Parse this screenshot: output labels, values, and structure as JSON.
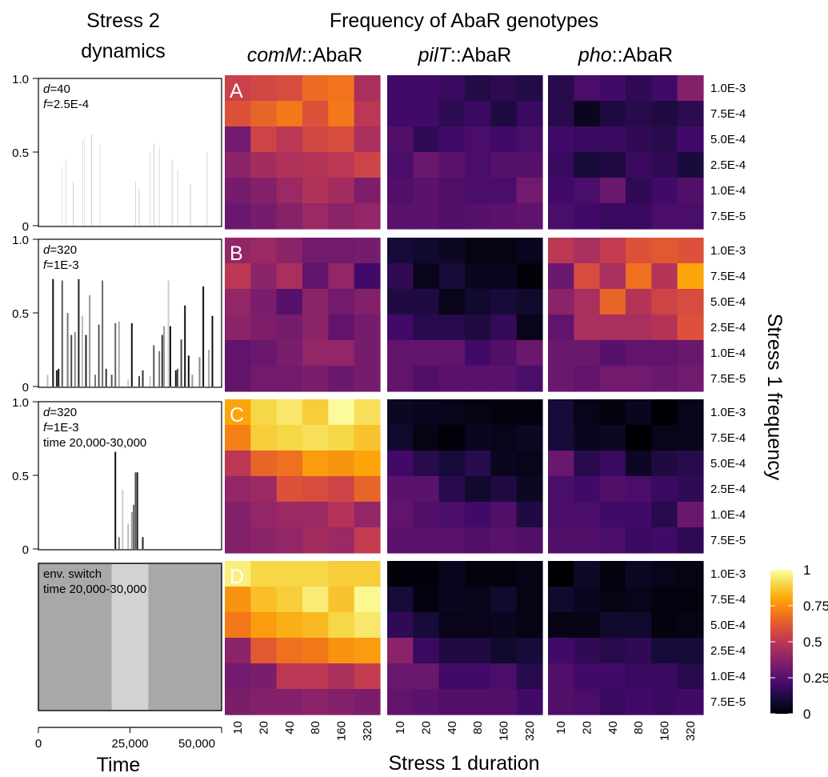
{
  "header": {
    "left_title_line1": "Stress 2",
    "left_title_line2": "dynamics",
    "main_title": "Frequency of AbaR genotypes",
    "col_prefixes": [
      "comM",
      "pilT",
      "pho"
    ],
    "col_suffix": "::AbaR"
  },
  "axes": {
    "y_tick_labels": [
      "1.0",
      "0.5",
      "0"
    ],
    "time_ticks": [
      "0",
      "25,000",
      "50,000"
    ],
    "time_label": "Time",
    "duration_label": "Stress 1 duration",
    "frequency_label": "Stress 1 frequency"
  },
  "annotations": {
    "r1_d_label": "d",
    "r1_d_value": "=40",
    "r1_f_label": "f",
    "r1_f_value": "=2.5E-4",
    "r2_d_label": "d",
    "r2_d_value": "=320",
    "r2_f_label": "f",
    "r2_f_value": "=1E-3",
    "r3_d_label": "d",
    "r3_d_value": "=320",
    "r3_f_label": "f",
    "r3_f_value": "=1E-3",
    "r3_time": "time 20,000-30,000",
    "r4_line1": "env. switch",
    "r4_line2": "time 20,000-30,000"
  },
  "panel_letters": [
    "A",
    "B",
    "C",
    "D"
  ],
  "colorbar": {
    "ticks": [
      "1",
      "0.75",
      "0.5",
      "0.25",
      "0"
    ],
    "colormap": "inferno"
  },
  "colors": {
    "switch_outer": "#a8a8a8",
    "switch_inner": "#d3d3d3",
    "panel_letter": "#ffffff"
  },
  "chart_data": {
    "type": "heatmap",
    "x_categories": [
      "10",
      "20",
      "40",
      "80",
      "160",
      "320"
    ],
    "y_categories": [
      "1.0E-3",
      "7.5E-4",
      "5.0E-4",
      "2.5E-4",
      "1.0E-4",
      "7.5E-5"
    ],
    "color_range": [
      0,
      1
    ],
    "panels": [
      {
        "label": "A",
        "genotype": "comM::AbaR",
        "values": [
          [
            0.54,
            0.56,
            0.58,
            0.67,
            0.69,
            0.45
          ],
          [
            0.6,
            0.65,
            0.7,
            0.6,
            0.7,
            0.5
          ],
          [
            0.32,
            0.55,
            0.5,
            0.56,
            0.58,
            0.45
          ],
          [
            0.38,
            0.44,
            0.47,
            0.48,
            0.5,
            0.55
          ],
          [
            0.33,
            0.36,
            0.42,
            0.47,
            0.44,
            0.35
          ],
          [
            0.3,
            0.33,
            0.37,
            0.42,
            0.38,
            0.4
          ]
        ]
      },
      {
        "label": "A",
        "genotype": "pilT::AbaR",
        "values": [
          [
            0.2,
            0.2,
            0.18,
            0.13,
            0.15,
            0.13
          ],
          [
            0.2,
            0.2,
            0.15,
            0.18,
            0.12,
            0.18
          ],
          [
            0.24,
            0.16,
            0.2,
            0.22,
            0.2,
            0.22
          ],
          [
            0.22,
            0.3,
            0.26,
            0.22,
            0.25,
            0.25
          ],
          [
            0.24,
            0.26,
            0.24,
            0.22,
            0.22,
            0.32
          ],
          [
            0.26,
            0.26,
            0.24,
            0.25,
            0.26,
            0.27
          ]
        ]
      },
      {
        "label": "A",
        "genotype": "pho::AbaR",
        "values": [
          [
            0.14,
            0.22,
            0.2,
            0.16,
            0.2,
            0.36
          ],
          [
            0.14,
            0.05,
            0.12,
            0.14,
            0.12,
            0.15
          ],
          [
            0.2,
            0.18,
            0.18,
            0.16,
            0.14,
            0.2
          ],
          [
            0.18,
            0.1,
            0.12,
            0.18,
            0.16,
            0.11
          ],
          [
            0.2,
            0.22,
            0.3,
            0.16,
            0.2,
            0.24
          ],
          [
            0.22,
            0.2,
            0.18,
            0.18,
            0.22,
            0.22
          ]
        ]
      },
      {
        "label": "B",
        "genotype": "comM::AbaR",
        "values": [
          [
            0.4,
            0.42,
            0.38,
            0.32,
            0.32,
            0.33
          ],
          [
            0.5,
            0.38,
            0.45,
            0.28,
            0.4,
            0.2
          ],
          [
            0.4,
            0.34,
            0.25,
            0.38,
            0.32,
            0.36
          ],
          [
            0.38,
            0.35,
            0.33,
            0.38,
            0.28,
            0.33
          ],
          [
            0.28,
            0.3,
            0.34,
            0.4,
            0.4,
            0.33
          ],
          [
            0.28,
            0.32,
            0.32,
            0.34,
            0.3,
            0.33
          ]
        ]
      },
      {
        "label": "B",
        "genotype": "pilT::AbaR",
        "values": [
          [
            0.1,
            0.08,
            0.06,
            0.03,
            0.03,
            0.05
          ],
          [
            0.16,
            0.04,
            0.1,
            0.05,
            0.05,
            0.01
          ],
          [
            0.12,
            0.12,
            0.04,
            0.08,
            0.1,
            0.08
          ],
          [
            0.2,
            0.14,
            0.14,
            0.12,
            0.17,
            0.04
          ],
          [
            0.28,
            0.28,
            0.28,
            0.2,
            0.24,
            0.3
          ],
          [
            0.28,
            0.24,
            0.26,
            0.26,
            0.26,
            0.22
          ]
        ]
      },
      {
        "label": "B",
        "genotype": "pho::AbaR",
        "values": [
          [
            0.5,
            0.45,
            0.52,
            0.6,
            0.62,
            0.6
          ],
          [
            0.3,
            0.58,
            0.45,
            0.68,
            0.48,
            0.8
          ],
          [
            0.38,
            0.45,
            0.65,
            0.48,
            0.55,
            0.58
          ],
          [
            0.28,
            0.45,
            0.45,
            0.45,
            0.48,
            0.6
          ],
          [
            0.3,
            0.3,
            0.25,
            0.28,
            0.28,
            0.3
          ],
          [
            0.3,
            0.28,
            0.32,
            0.32,
            0.3,
            0.32
          ]
        ]
      },
      {
        "label": "C",
        "genotype": "comM::AbaR",
        "values": [
          [
            0.8,
            0.9,
            0.94,
            0.88,
            0.99,
            0.92
          ],
          [
            0.72,
            0.88,
            0.9,
            0.92,
            0.9,
            0.86
          ],
          [
            0.5,
            0.65,
            0.68,
            0.78,
            0.76,
            0.8
          ],
          [
            0.4,
            0.42,
            0.6,
            0.58,
            0.55,
            0.65
          ],
          [
            0.36,
            0.4,
            0.42,
            0.42,
            0.48,
            0.4
          ],
          [
            0.36,
            0.38,
            0.4,
            0.44,
            0.42,
            0.52
          ]
        ]
      },
      {
        "label": "C",
        "genotype": "pilT::AbaR",
        "values": [
          [
            0.06,
            0.05,
            0.04,
            0.03,
            0.02,
            0.02
          ],
          [
            0.08,
            0.03,
            0.01,
            0.05,
            0.04,
            0.06
          ],
          [
            0.2,
            0.14,
            0.1,
            0.14,
            0.05,
            0.04
          ],
          [
            0.26,
            0.26,
            0.14,
            0.08,
            0.12,
            0.06
          ],
          [
            0.28,
            0.24,
            0.22,
            0.2,
            0.24,
            0.12
          ],
          [
            0.26,
            0.26,
            0.26,
            0.24,
            0.26,
            0.24
          ]
        ]
      },
      {
        "label": "C",
        "genotype": "pho::AbaR",
        "values": [
          [
            0.1,
            0.04,
            0.02,
            0.05,
            0.0,
            0.04
          ],
          [
            0.1,
            0.05,
            0.06,
            0.0,
            0.04,
            0.04
          ],
          [
            0.3,
            0.14,
            0.18,
            0.06,
            0.12,
            0.14
          ],
          [
            0.22,
            0.2,
            0.24,
            0.22,
            0.18,
            0.16
          ],
          [
            0.22,
            0.22,
            0.2,
            0.2,
            0.14,
            0.3
          ],
          [
            0.24,
            0.24,
            0.22,
            0.18,
            0.2,
            0.16
          ]
        ]
      },
      {
        "label": "D",
        "genotype": "comM::AbaR",
        "values": [
          [
            0.96,
            0.9,
            0.9,
            0.9,
            0.88,
            0.88
          ],
          [
            0.76,
            0.85,
            0.88,
            0.95,
            0.86,
            0.98
          ],
          [
            0.7,
            0.78,
            0.82,
            0.84,
            0.9,
            0.94
          ],
          [
            0.38,
            0.62,
            0.68,
            0.7,
            0.76,
            0.78
          ],
          [
            0.32,
            0.34,
            0.5,
            0.5,
            0.46,
            0.52
          ],
          [
            0.34,
            0.36,
            0.36,
            0.38,
            0.36,
            0.34
          ]
        ]
      },
      {
        "label": "D",
        "genotype": "pilT::AbaR",
        "values": [
          [
            0.01,
            0.01,
            0.05,
            0.02,
            0.02,
            0.03
          ],
          [
            0.1,
            0.02,
            0.05,
            0.04,
            0.08,
            0.03
          ],
          [
            0.16,
            0.1,
            0.04,
            0.04,
            0.05,
            0.03
          ],
          [
            0.38,
            0.18,
            0.12,
            0.12,
            0.08,
            0.1
          ],
          [
            0.3,
            0.3,
            0.2,
            0.2,
            0.22,
            0.14
          ],
          [
            0.28,
            0.26,
            0.24,
            0.24,
            0.24,
            0.2
          ]
        ]
      },
      {
        "label": "D",
        "genotype": "pho::AbaR",
        "values": [
          [
            0.0,
            0.07,
            0.02,
            0.06,
            0.04,
            0.03
          ],
          [
            0.08,
            0.05,
            0.03,
            0.04,
            0.02,
            0.02
          ],
          [
            0.03,
            0.03,
            0.08,
            0.08,
            0.02,
            0.03
          ],
          [
            0.2,
            0.16,
            0.14,
            0.16,
            0.1,
            0.1
          ],
          [
            0.24,
            0.2,
            0.2,
            0.18,
            0.18,
            0.14
          ],
          [
            0.24,
            0.22,
            0.18,
            0.2,
            0.18,
            0.2
          ]
        ]
      }
    ],
    "stress2_dynamics": {
      "y_range": [
        0,
        1
      ],
      "x_range": [
        0,
        50000
      ],
      "panels": [
        {
          "spikes": [
            [
              6400,
              0.4,
              "#e4e4e4"
            ],
            [
              7500,
              0.45,
              "#d8d8d8"
            ],
            [
              9500,
              0.3,
              "#d6d6d6"
            ],
            [
              12000,
              0.58,
              "#dadada"
            ],
            [
              12600,
              0.6,
              "#e2e2e2"
            ],
            [
              14500,
              0.62,
              "#cfcfcf"
            ],
            [
              16800,
              0.55,
              "#dddddd"
            ],
            [
              26500,
              0.3,
              "#d4d4d4"
            ],
            [
              27500,
              0.25,
              "#cfcfcf"
            ],
            [
              30500,
              0.5,
              "#d8d8d8"
            ],
            [
              31500,
              0.56,
              "#cacaca"
            ],
            [
              33000,
              0.53,
              "#d9d9d9"
            ],
            [
              36500,
              0.45,
              "#d0d0d0"
            ],
            [
              38000,
              0.38,
              "#d8d8d8"
            ],
            [
              41500,
              0.28,
              "#c8c8c8"
            ],
            [
              46000,
              0.5,
              "#d6d6d6"
            ]
          ]
        },
        {
          "spikes": [
            [
              2500,
              0.08,
              "#bdbdbd"
            ],
            [
              4000,
              0.73,
              "#111111"
            ],
            [
              5000,
              0.11,
              "#222222"
            ],
            [
              5500,
              0.12,
              "#111111"
            ],
            [
              6500,
              0.72,
              "#5a5a5a"
            ],
            [
              8000,
              0.5,
              "#777777"
            ],
            [
              9000,
              0.35,
              "#4a4a4a"
            ],
            [
              10000,
              0.37,
              "#8a8a8a"
            ],
            [
              11000,
              0.73,
              "#222222"
            ],
            [
              12000,
              0.48,
              "#bdbdbd"
            ],
            [
              13000,
              0.35,
              "#222222"
            ],
            [
              14000,
              0.62,
              "#999999"
            ],
            [
              15500,
              0.08,
              "#777777"
            ],
            [
              16500,
              0.42,
              "#555555"
            ],
            [
              17500,
              0.72,
              "#6a6a6a"
            ],
            [
              18500,
              0.12,
              "#333333"
            ],
            [
              20000,
              0.08,
              "#555555"
            ],
            [
              21000,
              0.43,
              "#666666"
            ],
            [
              22000,
              0.44,
              "#aaaaaa"
            ],
            [
              24500,
              0.05,
              "#cccccc"
            ],
            [
              25500,
              0.43,
              "#111111"
            ],
            [
              27500,
              0.07,
              "#444444"
            ],
            [
              28500,
              0.11,
              "#333333"
            ],
            [
              30500,
              0.07,
              "#cccccc"
            ],
            [
              31500,
              0.28,
              "#555555"
            ],
            [
              33000,
              0.24,
              "#777777"
            ],
            [
              33800,
              0.35,
              "#333333"
            ],
            [
              34300,
              0.41,
              "#999999"
            ],
            [
              35500,
              0.72,
              "#cccccc"
            ],
            [
              36000,
              0.41,
              "#111111"
            ],
            [
              37500,
              0.11,
              "#111111"
            ],
            [
              38000,
              0.12,
              "#555555"
            ],
            [
              39000,
              0.32,
              "#444444"
            ],
            [
              40000,
              0.55,
              "#111111"
            ],
            [
              41000,
              0.21,
              "#111111"
            ],
            [
              42000,
              0.08,
              "#999999"
            ],
            [
              44000,
              0.2,
              "#888888"
            ],
            [
              45000,
              0.68,
              "#111111"
            ],
            [
              46500,
              0.25,
              "#aaaaaa"
            ],
            [
              47500,
              0.48,
              "#111111"
            ]
          ]
        },
        {
          "spikes": [
            [
              21000,
              0.66,
              "#111111"
            ],
            [
              22000,
              0.08,
              "#777777"
            ],
            [
              23000,
              0.4,
              "#cccccc"
            ],
            [
              24500,
              0.17,
              "#bbbbbb"
            ],
            [
              25500,
              0.25,
              "#999999"
            ],
            [
              26000,
              0.3,
              "#666666"
            ],
            [
              26500,
              0.52,
              "#555555"
            ],
            [
              27000,
              0.52,
              "#222222"
            ],
            [
              28500,
              0.08,
              "#222222"
            ]
          ]
        }
      ],
      "switch_interval": [
        20000,
        30000
      ]
    }
  }
}
